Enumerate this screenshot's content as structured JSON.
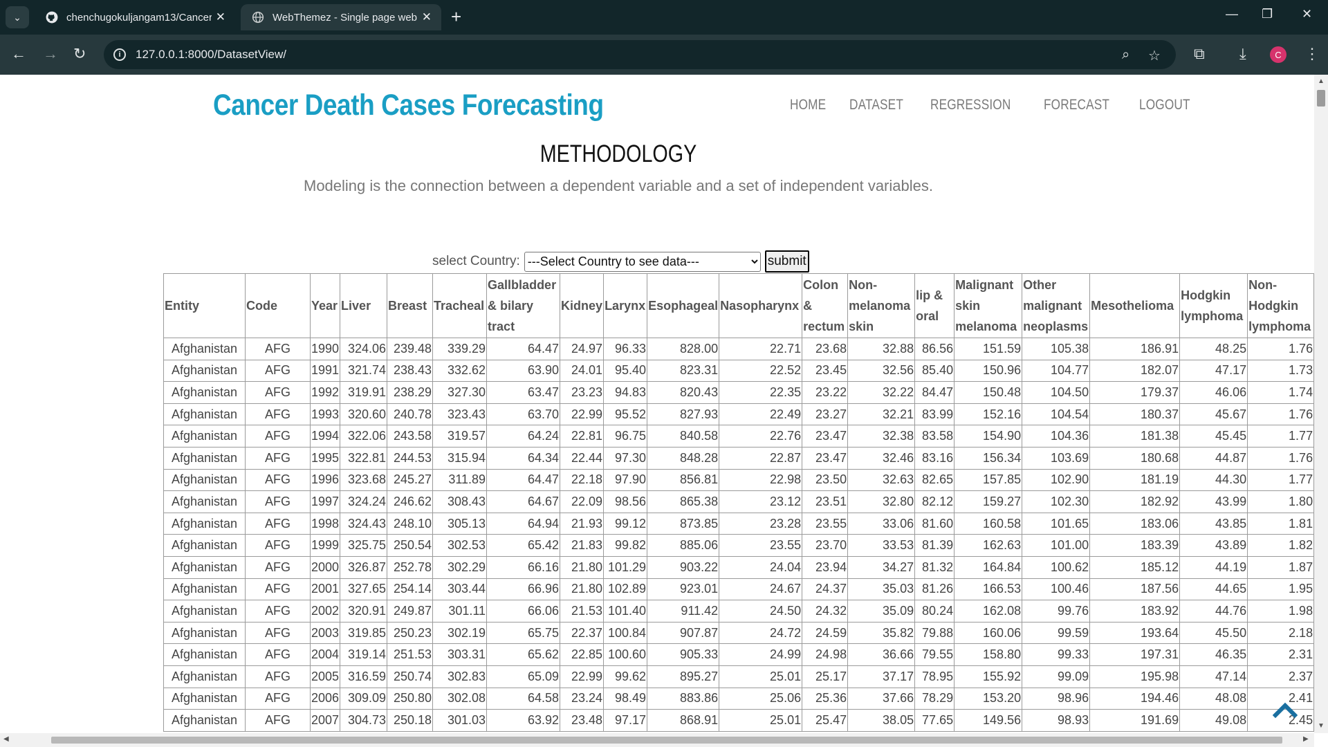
{
  "browser": {
    "tabs": [
      {
        "title": "chenchugokuljangam13/Cancer",
        "favicon": "github-icon",
        "active": false
      },
      {
        "title": "WebThemez - Single page web",
        "favicon": "globe-icon",
        "active": true
      }
    ],
    "url": "127.0.0.1:8000/DatasetView/",
    "profile_initial": "C"
  },
  "site": {
    "brand": "Cancer Death Cases Forecasting",
    "brand_color": "#1a9ec4",
    "nav": [
      "HOME",
      "DATASET",
      "REGRESSION",
      "FORECAST",
      "LOGOUT"
    ]
  },
  "section": {
    "title": "METHODOLOGY",
    "description": "Modeling is the connection between a dependent variable and a set of independent variables."
  },
  "filter": {
    "label": "select Country:",
    "selected": "---Select Country to see data---",
    "submit": "submit"
  },
  "table": {
    "columns": [
      "Entity",
      "Code",
      "Year",
      "Liver",
      "Breast",
      "Tracheal",
      "Gallbladder & bilary tract",
      "Kidney",
      "Larynx",
      "Esophageal",
      "Nasopharynx",
      "Colon & rectum",
      "Non-melanoma skin",
      "lip & oral",
      "Malignant skin melanoma",
      "Other malignant neoplasms",
      "Mesothelioma",
      "Hodgkin lymphoma",
      "Non-Hodgkin lymphoma"
    ],
    "rows": [
      [
        "Afghanistan",
        "AFG",
        "1990",
        "324.06",
        "239.48",
        "339.29",
        "64.47",
        "24.97",
        "96.33",
        "828.00",
        "22.71",
        "23.68",
        "32.88",
        "86.56",
        "151.59",
        "105.38",
        "186.91",
        "48.25",
        "1.76"
      ],
      [
        "Afghanistan",
        "AFG",
        "1991",
        "321.74",
        "238.43",
        "332.62",
        "63.90",
        "24.01",
        "95.40",
        "823.31",
        "22.52",
        "23.45",
        "32.56",
        "85.40",
        "150.96",
        "104.77",
        "182.07",
        "47.17",
        "1.73"
      ],
      [
        "Afghanistan",
        "AFG",
        "1992",
        "319.91",
        "238.29",
        "327.30",
        "63.47",
        "23.23",
        "94.83",
        "820.43",
        "22.35",
        "23.22",
        "32.22",
        "84.47",
        "150.48",
        "104.50",
        "179.37",
        "46.06",
        "1.74"
      ],
      [
        "Afghanistan",
        "AFG",
        "1993",
        "320.60",
        "240.78",
        "323.43",
        "63.70",
        "22.99",
        "95.52",
        "827.93",
        "22.49",
        "23.27",
        "32.21",
        "83.99",
        "152.16",
        "104.54",
        "180.37",
        "45.67",
        "1.76"
      ],
      [
        "Afghanistan",
        "AFG",
        "1994",
        "322.06",
        "243.58",
        "319.57",
        "64.24",
        "22.81",
        "96.75",
        "840.58",
        "22.76",
        "23.47",
        "32.38",
        "83.58",
        "154.90",
        "104.36",
        "181.38",
        "45.45",
        "1.77"
      ],
      [
        "Afghanistan",
        "AFG",
        "1995",
        "322.81",
        "244.53",
        "315.94",
        "64.34",
        "22.44",
        "97.30",
        "848.28",
        "22.87",
        "23.47",
        "32.46",
        "83.16",
        "156.34",
        "103.69",
        "180.68",
        "44.87",
        "1.76"
      ],
      [
        "Afghanistan",
        "AFG",
        "1996",
        "323.68",
        "245.27",
        "311.89",
        "64.47",
        "22.18",
        "97.90",
        "856.81",
        "22.98",
        "23.50",
        "32.63",
        "82.65",
        "157.85",
        "102.90",
        "181.19",
        "44.30",
        "1.77"
      ],
      [
        "Afghanistan",
        "AFG",
        "1997",
        "324.24",
        "246.62",
        "308.43",
        "64.67",
        "22.09",
        "98.56",
        "865.38",
        "23.12",
        "23.51",
        "32.80",
        "82.12",
        "159.27",
        "102.30",
        "182.92",
        "43.99",
        "1.80"
      ],
      [
        "Afghanistan",
        "AFG",
        "1998",
        "324.43",
        "248.10",
        "305.13",
        "64.94",
        "21.93",
        "99.12",
        "873.85",
        "23.28",
        "23.55",
        "33.06",
        "81.60",
        "160.58",
        "101.65",
        "183.06",
        "43.85",
        "1.81"
      ],
      [
        "Afghanistan",
        "AFG",
        "1999",
        "325.75",
        "250.54",
        "302.53",
        "65.42",
        "21.83",
        "99.82",
        "885.06",
        "23.55",
        "23.70",
        "33.53",
        "81.39",
        "162.63",
        "101.00",
        "183.39",
        "43.89",
        "1.82"
      ],
      [
        "Afghanistan",
        "AFG",
        "2000",
        "326.87",
        "252.78",
        "302.29",
        "66.16",
        "21.80",
        "101.29",
        "903.22",
        "24.04",
        "23.94",
        "34.27",
        "81.32",
        "164.84",
        "100.62",
        "185.12",
        "44.19",
        "1.87"
      ],
      [
        "Afghanistan",
        "AFG",
        "2001",
        "327.65",
        "254.14",
        "303.44",
        "66.96",
        "21.80",
        "102.89",
        "923.01",
        "24.67",
        "24.37",
        "35.03",
        "81.26",
        "166.53",
        "100.46",
        "187.56",
        "44.65",
        "1.95"
      ],
      [
        "Afghanistan",
        "AFG",
        "2002",
        "320.91",
        "249.87",
        "301.11",
        "66.06",
        "21.53",
        "101.40",
        "911.42",
        "24.50",
        "24.32",
        "35.09",
        "80.24",
        "162.08",
        "99.76",
        "183.92",
        "44.76",
        "1.98"
      ],
      [
        "Afghanistan",
        "AFG",
        "2003",
        "319.85",
        "250.23",
        "302.19",
        "65.75",
        "22.37",
        "100.84",
        "907.87",
        "24.72",
        "24.59",
        "35.82",
        "79.88",
        "160.06",
        "99.59",
        "193.64",
        "45.50",
        "2.18"
      ],
      [
        "Afghanistan",
        "AFG",
        "2004",
        "319.14",
        "251.53",
        "303.31",
        "65.62",
        "22.85",
        "100.60",
        "905.33",
        "24.99",
        "24.98",
        "36.66",
        "79.55",
        "158.80",
        "99.33",
        "197.31",
        "46.35",
        "2.31"
      ],
      [
        "Afghanistan",
        "AFG",
        "2005",
        "316.59",
        "250.74",
        "302.83",
        "65.09",
        "22.99",
        "99.62",
        "895.27",
        "25.01",
        "25.17",
        "37.17",
        "78.95",
        "155.92",
        "99.09",
        "195.98",
        "47.14",
        "2.37"
      ],
      [
        "Afghanistan",
        "AFG",
        "2006",
        "309.09",
        "250.80",
        "302.08",
        "64.58",
        "23.24",
        "98.49",
        "883.86",
        "25.06",
        "25.36",
        "37.66",
        "78.29",
        "153.20",
        "98.96",
        "194.46",
        "48.08",
        "2.41"
      ],
      [
        "Afghanistan",
        "AFG",
        "2007",
        "304.73",
        "250.18",
        "301.03",
        "63.92",
        "23.48",
        "97.17",
        "868.91",
        "25.01",
        "25.47",
        "38.05",
        "77.65",
        "149.56",
        "98.93",
        "191.69",
        "49.08",
        "2.45"
      ]
    ]
  },
  "icons": {
    "scroll_top": "chevron-up-icon",
    "scroll_top_color": "#1a6fa0"
  }
}
